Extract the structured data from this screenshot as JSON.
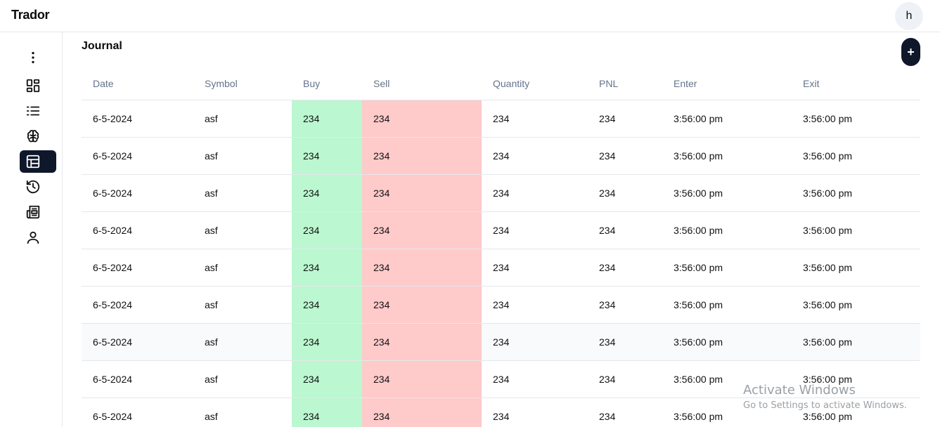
{
  "app": {
    "brand": "Trador",
    "avatar_letter": "h"
  },
  "sidebar": {
    "items": [
      {
        "name": "more-menu",
        "icon": "kebab-vertical-icon"
      },
      {
        "name": "dashboard",
        "icon": "dashboard-grid-icon"
      },
      {
        "name": "list",
        "icon": "list-ordered-icon"
      },
      {
        "name": "brain",
        "icon": "brain-icon"
      },
      {
        "name": "journal",
        "icon": "table-icon",
        "active": true
      },
      {
        "name": "history",
        "icon": "history-icon"
      },
      {
        "name": "news",
        "icon": "newspaper-icon"
      },
      {
        "name": "profile",
        "icon": "user-icon"
      }
    ]
  },
  "main": {
    "title": "Journal",
    "add_label": "+",
    "columns": [
      "Date",
      "Symbol",
      "Buy",
      "Sell",
      "Quantity",
      "PNL",
      "Enter",
      "Exit"
    ],
    "rows": [
      [
        "6-5-2024",
        "asf",
        "234",
        "234",
        "234",
        "234",
        "3:56:00 pm",
        "3:56:00 pm"
      ],
      [
        "6-5-2024",
        "asf",
        "234",
        "234",
        "234",
        "234",
        "3:56:00 pm",
        "3:56:00 pm"
      ],
      [
        "6-5-2024",
        "asf",
        "234",
        "234",
        "234",
        "234",
        "3:56:00 pm",
        "3:56:00 pm"
      ],
      [
        "6-5-2024",
        "asf",
        "234",
        "234",
        "234",
        "234",
        "3:56:00 pm",
        "3:56:00 pm"
      ],
      [
        "6-5-2024",
        "asf",
        "234",
        "234",
        "234",
        "234",
        "3:56:00 pm",
        "3:56:00 pm"
      ],
      [
        "6-5-2024",
        "asf",
        "234",
        "234",
        "234",
        "234",
        "3:56:00 pm",
        "3:56:00 pm"
      ],
      [
        "6-5-2024",
        "asf",
        "234",
        "234",
        "234",
        "234",
        "3:56:00 pm",
        "3:56:00 pm"
      ],
      [
        "6-5-2024",
        "asf",
        "234",
        "234",
        "234",
        "234",
        "3:56:00 pm",
        "3:56:00 pm"
      ],
      [
        "6-5-2024",
        "asf",
        "234",
        "234",
        "234",
        "234",
        "3:56:00 pm",
        "3:56:00 pm"
      ]
    ],
    "highlighted_row": 6
  },
  "colors": {
    "buy_bg": "#bbf7d0",
    "sell_bg": "#fecaca",
    "accent": "#0f172a"
  },
  "watermark": {
    "title": "Activate Windows",
    "subtitle": "Go to Settings to activate Windows."
  }
}
